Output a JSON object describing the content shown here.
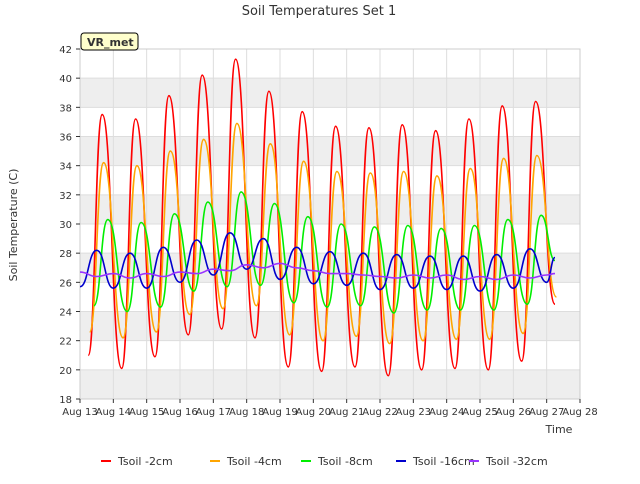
{
  "chart_data": {
    "type": "line",
    "title": "Soil Temperatures Set 1",
    "xlabel": "Time",
    "ylabel": "Soil Temperature (C)",
    "station_badge": "VR_met",
    "x_ticks": [
      "Aug 13",
      "Aug 14",
      "Aug 15",
      "Aug 16",
      "Aug 17",
      "Aug 18",
      "Aug 19",
      "Aug 20",
      "Aug 21",
      "Aug 22",
      "Aug 23",
      "Aug 24",
      "Aug 25",
      "Aug 26",
      "Aug 27",
      "Aug 28"
    ],
    "y_ticks": [
      18,
      20,
      22,
      24,
      26,
      28,
      30,
      32,
      34,
      36,
      38,
      40,
      42
    ],
    "xlim": [
      "Aug 13",
      "Aug 28"
    ],
    "ylim": [
      18,
      42
    ],
    "grid": true,
    "legend_position": "bottom",
    "colors": {
      "band": "#eeeeee",
      "plot_bg": "#ffffff",
      "badge_bg": "#ffffcc",
      "badge_text": "#8b0000"
    },
    "series": [
      {
        "name": "Tsoil -2cm",
        "color": "#ff0000",
        "x": [
          "Aug 13 06:00",
          "Aug 13 16:00",
          "Aug 14 06:00",
          "Aug 14 16:00",
          "Aug 15 06:00",
          "Aug 15 16:00",
          "Aug 16 06:00",
          "Aug 16 16:00",
          "Aug 17 06:00",
          "Aug 17 16:00",
          "Aug 18 06:00",
          "Aug 18 16:00",
          "Aug 19 06:00",
          "Aug 19 16:00",
          "Aug 20 06:00",
          "Aug 20 16:00",
          "Aug 21 06:00",
          "Aug 21 16:00",
          "Aug 22 06:00",
          "Aug 22 16:00",
          "Aug 23 06:00",
          "Aug 23 16:00",
          "Aug 24 06:00",
          "Aug 24 16:00",
          "Aug 25 06:00",
          "Aug 25 16:00",
          "Aug 26 06:00",
          "Aug 26 16:00",
          "Aug 27 06:00"
        ],
        "y": [
          21.0,
          37.5,
          20.1,
          37.2,
          20.9,
          38.8,
          22.4,
          40.2,
          22.8,
          41.3,
          22.2,
          39.1,
          20.2,
          37.7,
          19.9,
          36.7,
          20.2,
          36.6,
          19.6,
          36.8,
          20.0,
          36.4,
          20.1,
          37.2,
          20.0,
          38.1,
          20.6,
          38.4,
          24.5
        ]
      },
      {
        "name": "Tsoil -4cm",
        "color": "#ffa500",
        "x": [
          "Aug 13 07:00",
          "Aug 13 17:00",
          "Aug 14 07:00",
          "Aug 14 17:00",
          "Aug 15 07:00",
          "Aug 15 17:00",
          "Aug 16 07:00",
          "Aug 16 17:00",
          "Aug 17 07:00",
          "Aug 17 17:00",
          "Aug 18 07:00",
          "Aug 18 17:00",
          "Aug 19 07:00",
          "Aug 19 17:00",
          "Aug 20 07:00",
          "Aug 20 17:00",
          "Aug 21 07:00",
          "Aug 21 17:00",
          "Aug 22 07:00",
          "Aug 22 17:00",
          "Aug 23 07:00",
          "Aug 23 17:00",
          "Aug 24 07:00",
          "Aug 24 17:00",
          "Aug 25 07:00",
          "Aug 25 17:00",
          "Aug 26 07:00",
          "Aug 26 17:00",
          "Aug 27 07:00"
        ],
        "y": [
          22.6,
          34.2,
          22.2,
          34.0,
          22.6,
          35.0,
          23.8,
          35.8,
          24.2,
          36.9,
          24.4,
          35.5,
          22.4,
          34.3,
          22.0,
          33.6,
          22.3,
          33.5,
          21.8,
          33.6,
          22.0,
          33.3,
          22.1,
          33.8,
          22.1,
          34.5,
          22.5,
          34.7,
          25.0
        ]
      },
      {
        "name": "Tsoil -8cm",
        "color": "#00ee00",
        "x": [
          "Aug 13 10:00",
          "Aug 13 20:00",
          "Aug 14 10:00",
          "Aug 14 20:00",
          "Aug 15 10:00",
          "Aug 15 20:00",
          "Aug 16 10:00",
          "Aug 16 20:00",
          "Aug 17 10:00",
          "Aug 17 20:00",
          "Aug 18 10:00",
          "Aug 18 20:00",
          "Aug 19 10:00",
          "Aug 19 20:00",
          "Aug 20 10:00",
          "Aug 20 20:00",
          "Aug 21 10:00",
          "Aug 21 20:00",
          "Aug 22 10:00",
          "Aug 22 20:00",
          "Aug 23 10:00",
          "Aug 23 20:00",
          "Aug 24 10:00",
          "Aug 24 20:00",
          "Aug 25 10:00",
          "Aug 25 20:00",
          "Aug 26 10:00",
          "Aug 26 20:00",
          "Aug 27 06:00"
        ],
        "y": [
          24.4,
          30.3,
          24.0,
          30.1,
          24.3,
          30.7,
          25.4,
          31.5,
          25.7,
          32.2,
          25.8,
          31.4,
          24.6,
          30.5,
          24.3,
          30.0,
          24.4,
          29.8,
          23.9,
          29.9,
          24.1,
          29.7,
          24.1,
          29.9,
          24.1,
          30.3,
          24.5,
          30.6,
          27.5
        ]
      },
      {
        "name": "Tsoil -16cm",
        "color": "#0000cc",
        "x": [
          "Aug 13 00:00",
          "Aug 13 12:00",
          "Aug 14 00:00",
          "Aug 14 12:00",
          "Aug 15 00:00",
          "Aug 15 12:00",
          "Aug 16 00:00",
          "Aug 16 12:00",
          "Aug 17 00:00",
          "Aug 17 12:00",
          "Aug 18 00:00",
          "Aug 18 12:00",
          "Aug 19 00:00",
          "Aug 19 12:00",
          "Aug 20 00:00",
          "Aug 20 12:00",
          "Aug 21 00:00",
          "Aug 21 12:00",
          "Aug 22 00:00",
          "Aug 22 12:00",
          "Aug 23 00:00",
          "Aug 23 12:00",
          "Aug 24 00:00",
          "Aug 24 12:00",
          "Aug 25 00:00",
          "Aug 25 12:00",
          "Aug 26 00:00",
          "Aug 26 12:00",
          "Aug 27 00:00",
          "Aug 27 06:00"
        ],
        "y": [
          25.7,
          28.2,
          25.6,
          28.0,
          25.6,
          28.4,
          26.0,
          28.9,
          26.5,
          29.4,
          26.9,
          29.0,
          26.2,
          28.4,
          25.9,
          28.1,
          25.8,
          28.0,
          25.5,
          27.9,
          25.6,
          27.8,
          25.5,
          27.8,
          25.4,
          27.9,
          25.6,
          28.3,
          26.0,
          27.7
        ]
      },
      {
        "name": "Tsoil -32cm",
        "color": "#9933ff",
        "x": [
          "Aug 13 00:00",
          "Aug 13 12:00",
          "Aug 14 00:00",
          "Aug 14 12:00",
          "Aug 15 00:00",
          "Aug 15 12:00",
          "Aug 16 00:00",
          "Aug 16 12:00",
          "Aug 17 00:00",
          "Aug 17 12:00",
          "Aug 18 00:00",
          "Aug 18 12:00",
          "Aug 19 00:00",
          "Aug 19 12:00",
          "Aug 20 00:00",
          "Aug 20 12:00",
          "Aug 21 00:00",
          "Aug 21 12:00",
          "Aug 22 00:00",
          "Aug 22 12:00",
          "Aug 23 00:00",
          "Aug 23 12:00",
          "Aug 24 00:00",
          "Aug 24 12:00",
          "Aug 25 00:00",
          "Aug 25 12:00",
          "Aug 26 00:00",
          "Aug 26 12:00",
          "Aug 27 00:00",
          "Aug 27 06:00"
        ],
        "y": [
          26.7,
          26.4,
          26.6,
          26.3,
          26.6,
          26.4,
          26.7,
          26.6,
          26.9,
          26.8,
          27.2,
          27.0,
          27.3,
          27.0,
          26.8,
          26.6,
          26.6,
          26.5,
          26.4,
          26.3,
          26.5,
          26.3,
          26.5,
          26.2,
          26.4,
          26.2,
          26.5,
          26.3,
          26.5,
          26.6
        ]
      }
    ]
  }
}
